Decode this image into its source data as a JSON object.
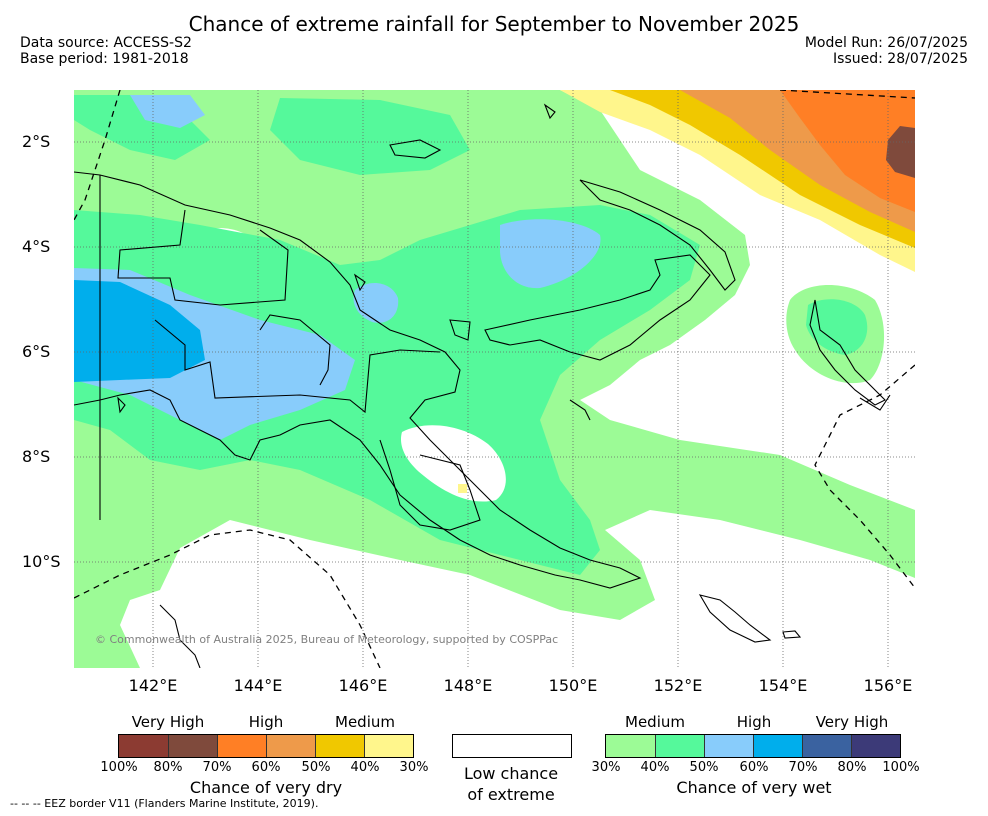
{
  "header": {
    "title": "Chance of extreme rainfall for September to November 2025",
    "data_source": "Data source: ACCESS-S2",
    "base_period": "Base period: 1981-2018",
    "model_run": "Model Run: 26/07/2025",
    "issued": "Issued: 28/07/2025"
  },
  "map": {
    "lat_labels": [
      "2°S",
      "4°S",
      "6°S",
      "8°S",
      "10°S"
    ],
    "lon_labels": [
      "142°E",
      "144°E",
      "146°E",
      "148°E",
      "150°E",
      "152°E",
      "154°E",
      "156°E"
    ],
    "copyright": "© Commonwealth of Australia 2025, Bureau of Meteorology, supported by COSPPac",
    "colors": {
      "wet_30_40": "#9cfb96",
      "wet_40_50": "#55f99b",
      "wet_50_60": "#88ccfb",
      "wet_60_70": "#00aeec",
      "dry_30_40": "#fff68c",
      "dry_40_50": "#f0c800",
      "dry_50_60": "#ee9a4a",
      "dry_60_70": "#ff7f25",
      "dry_80_100": "#7f4a3c"
    }
  },
  "legend": {
    "dry": {
      "levels": [
        "Very High",
        "High",
        "Medium"
      ],
      "ticks": [
        "100%",
        "80%",
        "70%",
        "60%",
        "50%",
        "40%",
        "30%"
      ],
      "colors": [
        "#8c3b32",
        "#7f4a3c",
        "#ff7f25",
        "#ee9a4a",
        "#f0c800",
        "#fff68c"
      ],
      "caption": "Chance of very dry"
    },
    "low": {
      "caption_1": "Low chance",
      "caption_2": "of extreme"
    },
    "wet": {
      "levels": [
        "Medium",
        "High",
        "Very High"
      ],
      "ticks": [
        "30%",
        "40%",
        "50%",
        "60%",
        "70%",
        "80%",
        "100%"
      ],
      "colors": [
        "#9cfb96",
        "#55f99b",
        "#88ccfb",
        "#00aeec",
        "#3a62a0",
        "#3c3a78"
      ],
      "caption": "Chance of very wet"
    },
    "eez_note": "--  --  -- EEZ border V11 (Flanders Marine Institute, 2019)."
  }
}
